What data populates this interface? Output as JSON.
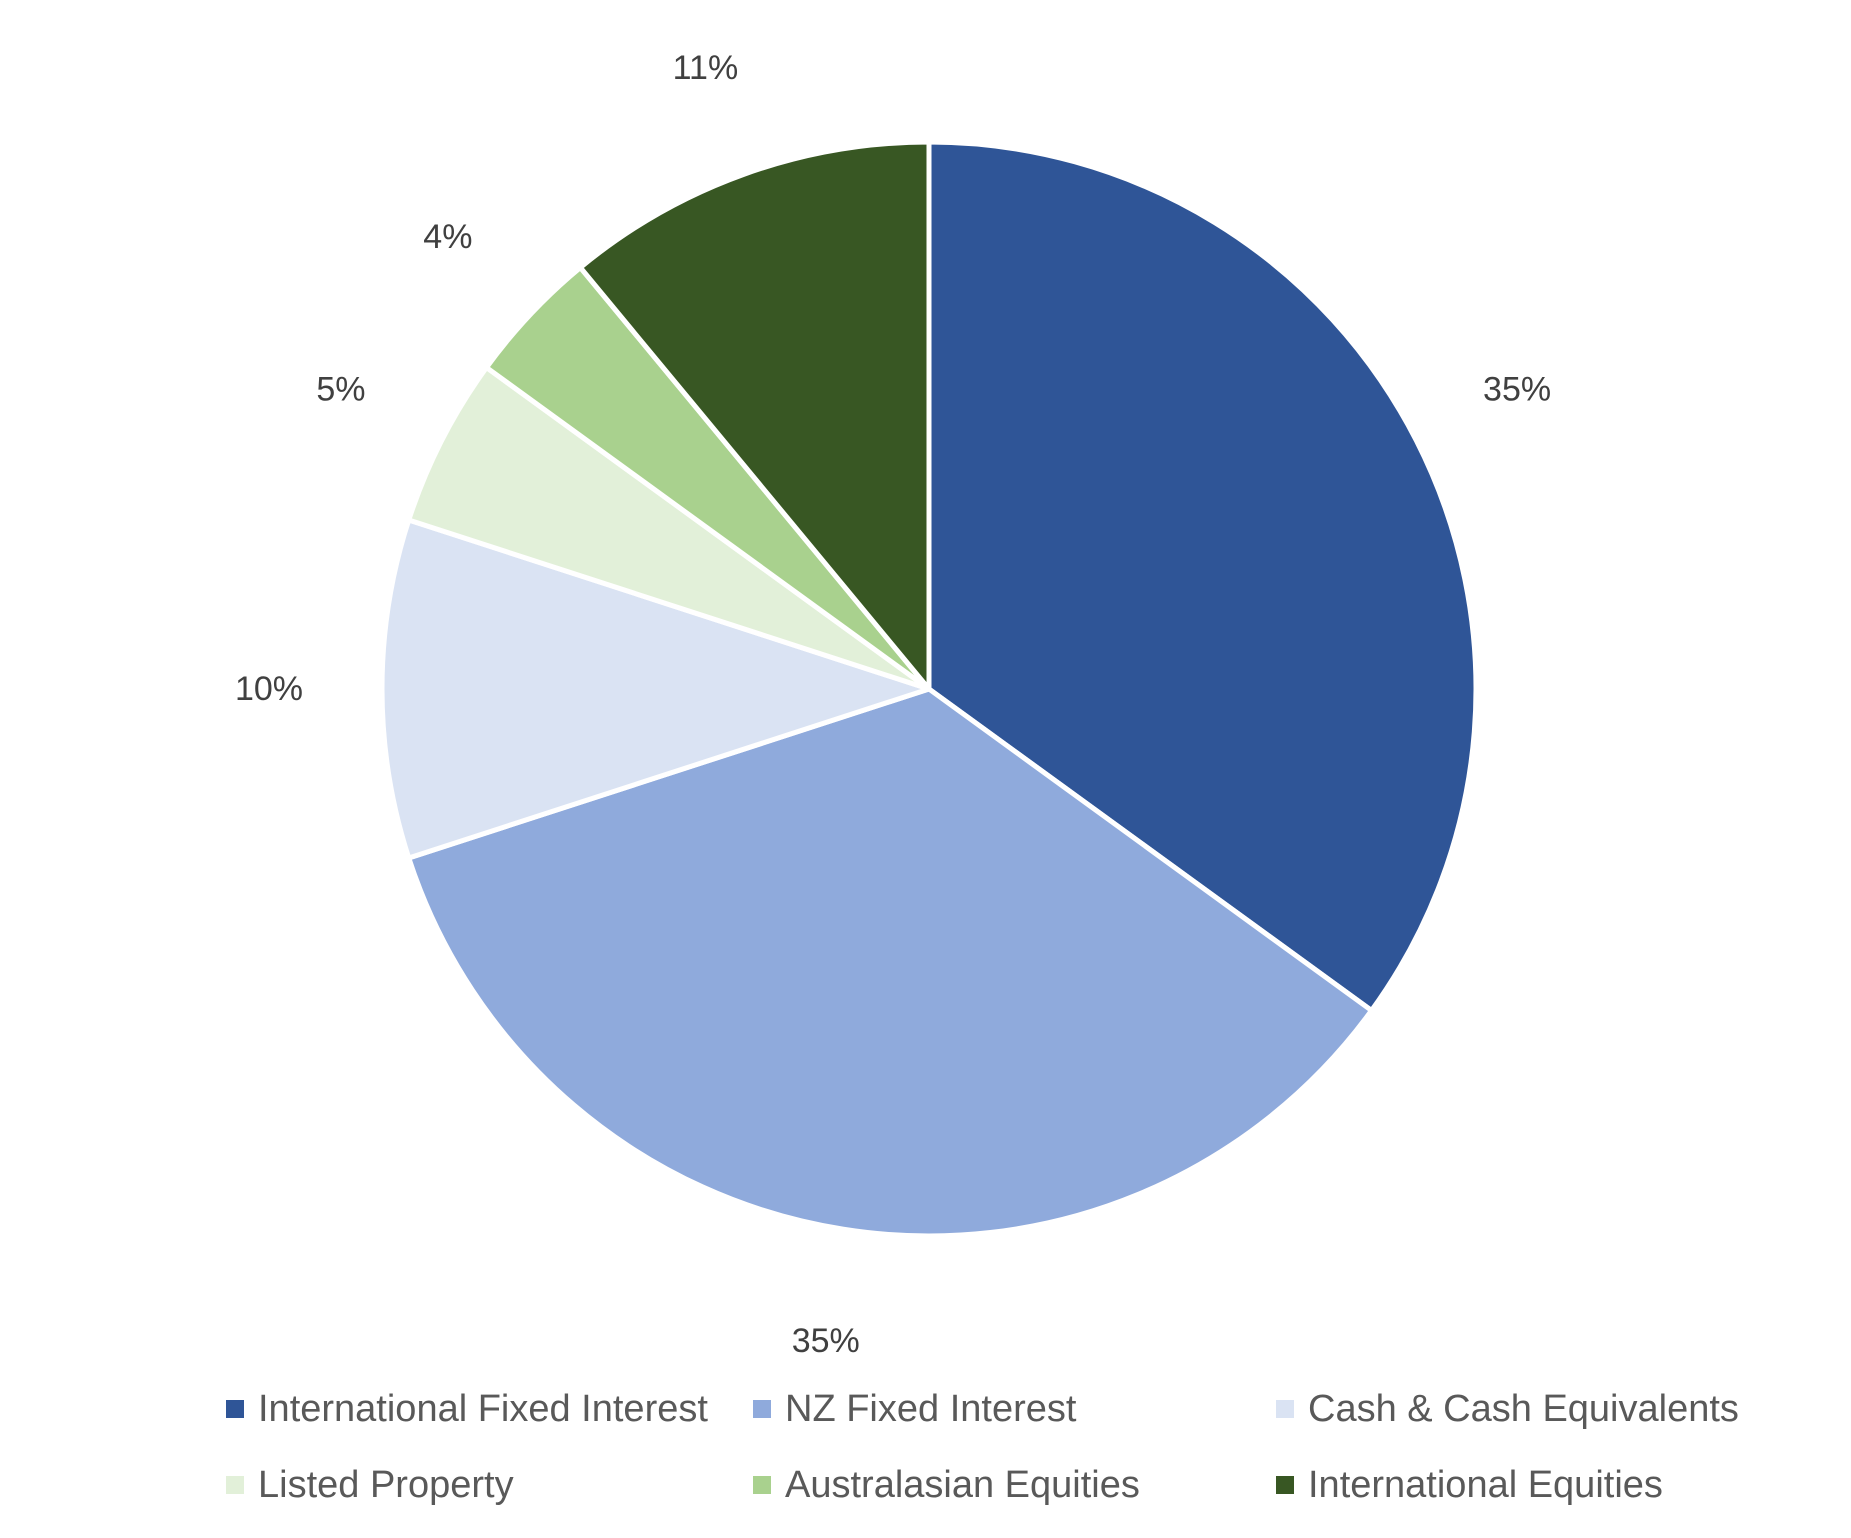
{
  "chart_data": {
    "type": "pie",
    "start_angle_deg": 0,
    "direction": "clockwise",
    "legend_position": "bottom",
    "slices": [
      {
        "label": "International Fixed Interest",
        "value": 35,
        "display": "35%",
        "color": "#2F5597"
      },
      {
        "label": "NZ Fixed Interest",
        "value": 35,
        "display": "35%",
        "color": "#8FAADC"
      },
      {
        "label": "Cash & Cash Equivalents",
        "value": 10,
        "display": "10%",
        "color": "#DAE3F3"
      },
      {
        "label": "Listed Property",
        "value": 5,
        "display": "5%",
        "color": "#E2F0D9"
      },
      {
        "label": "Australasian Equities",
        "value": 4,
        "display": "4%",
        "color": "#A9D18E"
      },
      {
        "label": "International Equities",
        "value": 11,
        "display": "11%",
        "color": "#385723"
      }
    ]
  }
}
